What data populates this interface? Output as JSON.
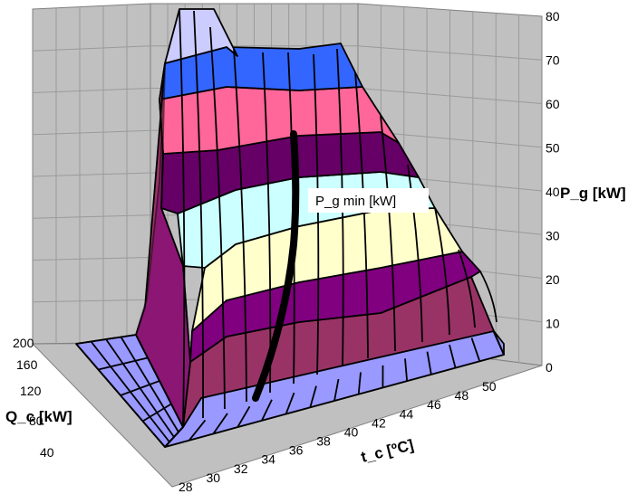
{
  "chart_data": {
    "type": "surface-3d",
    "title": "",
    "axes": {
      "x": {
        "label": "t_c [ºC]",
        "ticks": [
          "28",
          "30",
          "32",
          "34",
          "36",
          "38",
          "40",
          "42",
          "44",
          "46",
          "48",
          "50"
        ],
        "range": [
          28,
          50
        ]
      },
      "y": {
        "label": "Q_c [kW]",
        "ticks": [
          "40",
          "80",
          "120",
          "160",
          "200"
        ],
        "range": [
          20,
          200
        ]
      },
      "z": {
        "label": "P_g [kW]",
        "ticks": [
          "0",
          "10",
          "20",
          "30",
          "40",
          "50",
          "60",
          "70",
          "80"
        ],
        "range": [
          0,
          80
        ]
      }
    },
    "bands": [
      {
        "range": [
          0,
          10
        ],
        "color": "#9999ff"
      },
      {
        "range": [
          10,
          20
        ],
        "color": "#993366"
      },
      {
        "range": [
          20,
          30
        ],
        "color": "#800080"
      },
      {
        "range": [
          30,
          40
        ],
        "color": "#ffffcc"
      },
      {
        "range": [
          40,
          50
        ],
        "color": "#ccffff"
      },
      {
        "range": [
          50,
          60
        ],
        "color": "#660066"
      },
      {
        "range": [
          60,
          70
        ],
        "color": "#ff6699"
      },
      {
        "range": [
          70,
          80
        ],
        "color": "#3366ff"
      },
      {
        "range": [
          80,
          90
        ],
        "color": "#ccccff"
      }
    ],
    "annotation": {
      "text": "P_g min [kW]"
    },
    "grid": true,
    "legend": "none"
  }
}
